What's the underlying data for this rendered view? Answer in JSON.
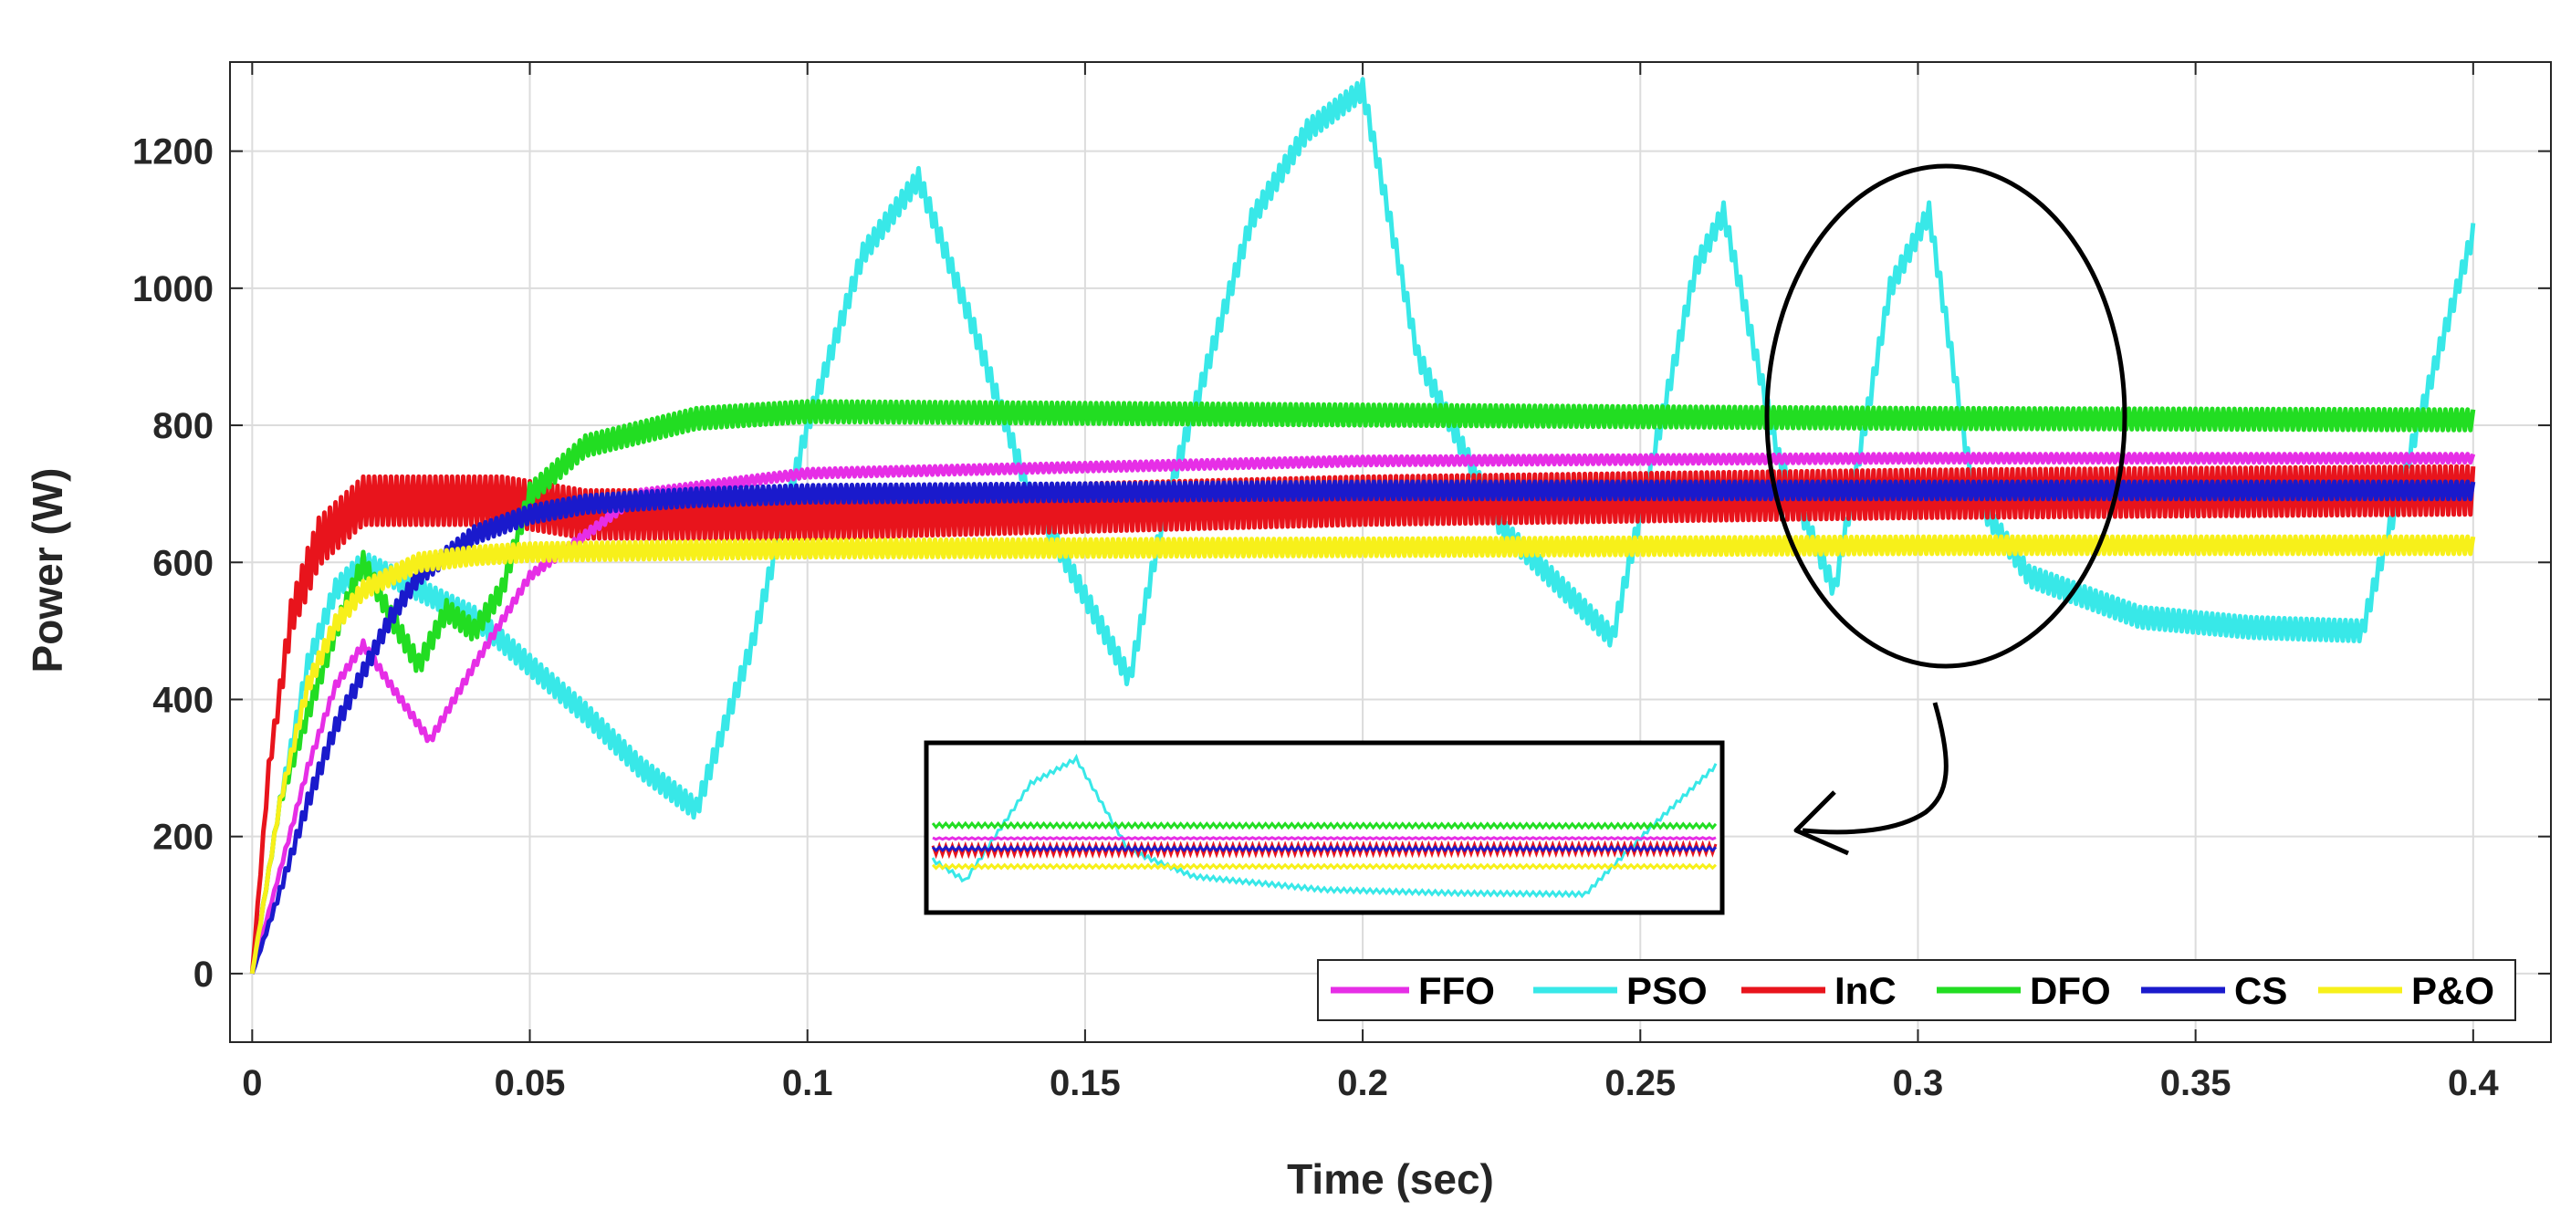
{
  "chart_data": {
    "type": "line",
    "title": "",
    "xlabel": "Time (sec)",
    "ylabel": "Power (W)",
    "xlim": [
      -0.004,
      0.414
    ],
    "ylim": [
      -100,
      1330
    ],
    "grid": true,
    "x_ticks": [
      0,
      0.05,
      0.1,
      0.15,
      0.2,
      0.25,
      0.3,
      0.35,
      0.4
    ],
    "x_tick_labels": [
      "0",
      "0.05",
      "0.1",
      "0.15",
      "0.2",
      "0.25",
      "0.3",
      "0.35",
      "0.4"
    ],
    "y_ticks": [
      0,
      200,
      400,
      600,
      800,
      1000,
      1200
    ],
    "y_tick_labels": [
      "0",
      "200",
      "400",
      "600",
      "800",
      "1000",
      "1200"
    ],
    "legend_position": "bottom-right",
    "series": [
      {
        "name": "FFO",
        "color": "#e62ee6",
        "ripple": 12,
        "x": [
          0,
          0.005,
          0.01,
          0.015,
          0.02,
          0.025,
          0.032,
          0.04,
          0.05,
          0.07,
          0.1,
          0.2,
          0.3,
          0.4
        ],
        "y": [
          0,
          150,
          300,
          420,
          480,
          420,
          340,
          450,
          580,
          700,
          730,
          748,
          752,
          752
        ]
      },
      {
        "name": "PSO",
        "color": "#38e8e8",
        "ripple": 30,
        "x": [
          0,
          0.005,
          0.01,
          0.015,
          0.02,
          0.03,
          0.04,
          0.05,
          0.06,
          0.07,
          0.08,
          0.09,
          0.1,
          0.11,
          0.12,
          0.13,
          0.14,
          0.158,
          0.165,
          0.18,
          0.19,
          0.2,
          0.21,
          0.225,
          0.245,
          0.26,
          0.265,
          0.275,
          0.285,
          0.295,
          0.302,
          0.31,
          0.32,
          0.34,
          0.36,
          0.38,
          0.39,
          0.4
        ],
        "y": [
          0,
          250,
          450,
          560,
          600,
          560,
          520,
          450,
          380,
          300,
          240,
          480,
          800,
          1050,
          1160,
          940,
          700,
          430,
          700,
          1100,
          1230,
          1290,
          900,
          650,
          490,
          1030,
          1110,
          750,
          560,
          1000,
          1110,
          700,
          580,
          520,
          505,
          500,
          800,
          1080
        ]
      },
      {
        "name": "InC",
        "color": "#e8141c",
        "ripple": 70,
        "x": [
          0,
          0.003,
          0.007,
          0.012,
          0.02,
          0.03,
          0.045,
          0.06,
          0.1,
          0.2,
          0.3,
          0.4
        ],
        "y": [
          0,
          300,
          520,
          630,
          690,
          690,
          690,
          670,
          670,
          690,
          700,
          705
        ]
      },
      {
        "name": "DFO",
        "color": "#22dd22",
        "ripple": 30,
        "x": [
          0,
          0.005,
          0.01,
          0.015,
          0.02,
          0.025,
          0.03,
          0.035,
          0.04,
          0.045,
          0.05,
          0.06,
          0.07,
          0.08,
          0.1,
          0.2,
          0.3,
          0.4
        ],
        "y": [
          0,
          250,
          380,
          500,
          600,
          520,
          450,
          530,
          500,
          560,
          700,
          770,
          790,
          810,
          820,
          815,
          810,
          808
        ]
      },
      {
        "name": "CS",
        "color": "#1a1acc",
        "ripple": 25,
        "x": [
          0,
          0.005,
          0.01,
          0.015,
          0.02,
          0.025,
          0.03,
          0.04,
          0.05,
          0.06,
          0.08,
          0.1,
          0.2,
          0.3,
          0.4
        ],
        "y": [
          0,
          120,
          250,
          360,
          440,
          520,
          580,
          640,
          670,
          685,
          695,
          700,
          705,
          705,
          705
        ]
      },
      {
        "name": "P&O",
        "color": "#f7f01a",
        "ripple": 25,
        "x": [
          0,
          0.005,
          0.01,
          0.015,
          0.02,
          0.03,
          0.04,
          0.05,
          0.1,
          0.2,
          0.3,
          0.4
        ],
        "y": [
          0,
          250,
          420,
          510,
          560,
          600,
          610,
          615,
          620,
          622,
          625,
          625
        ]
      }
    ],
    "annotations": {
      "highlight": "ellipse around t≈0.3 s",
      "inset": "zoomed view of the steady-state waveforms"
    }
  }
}
